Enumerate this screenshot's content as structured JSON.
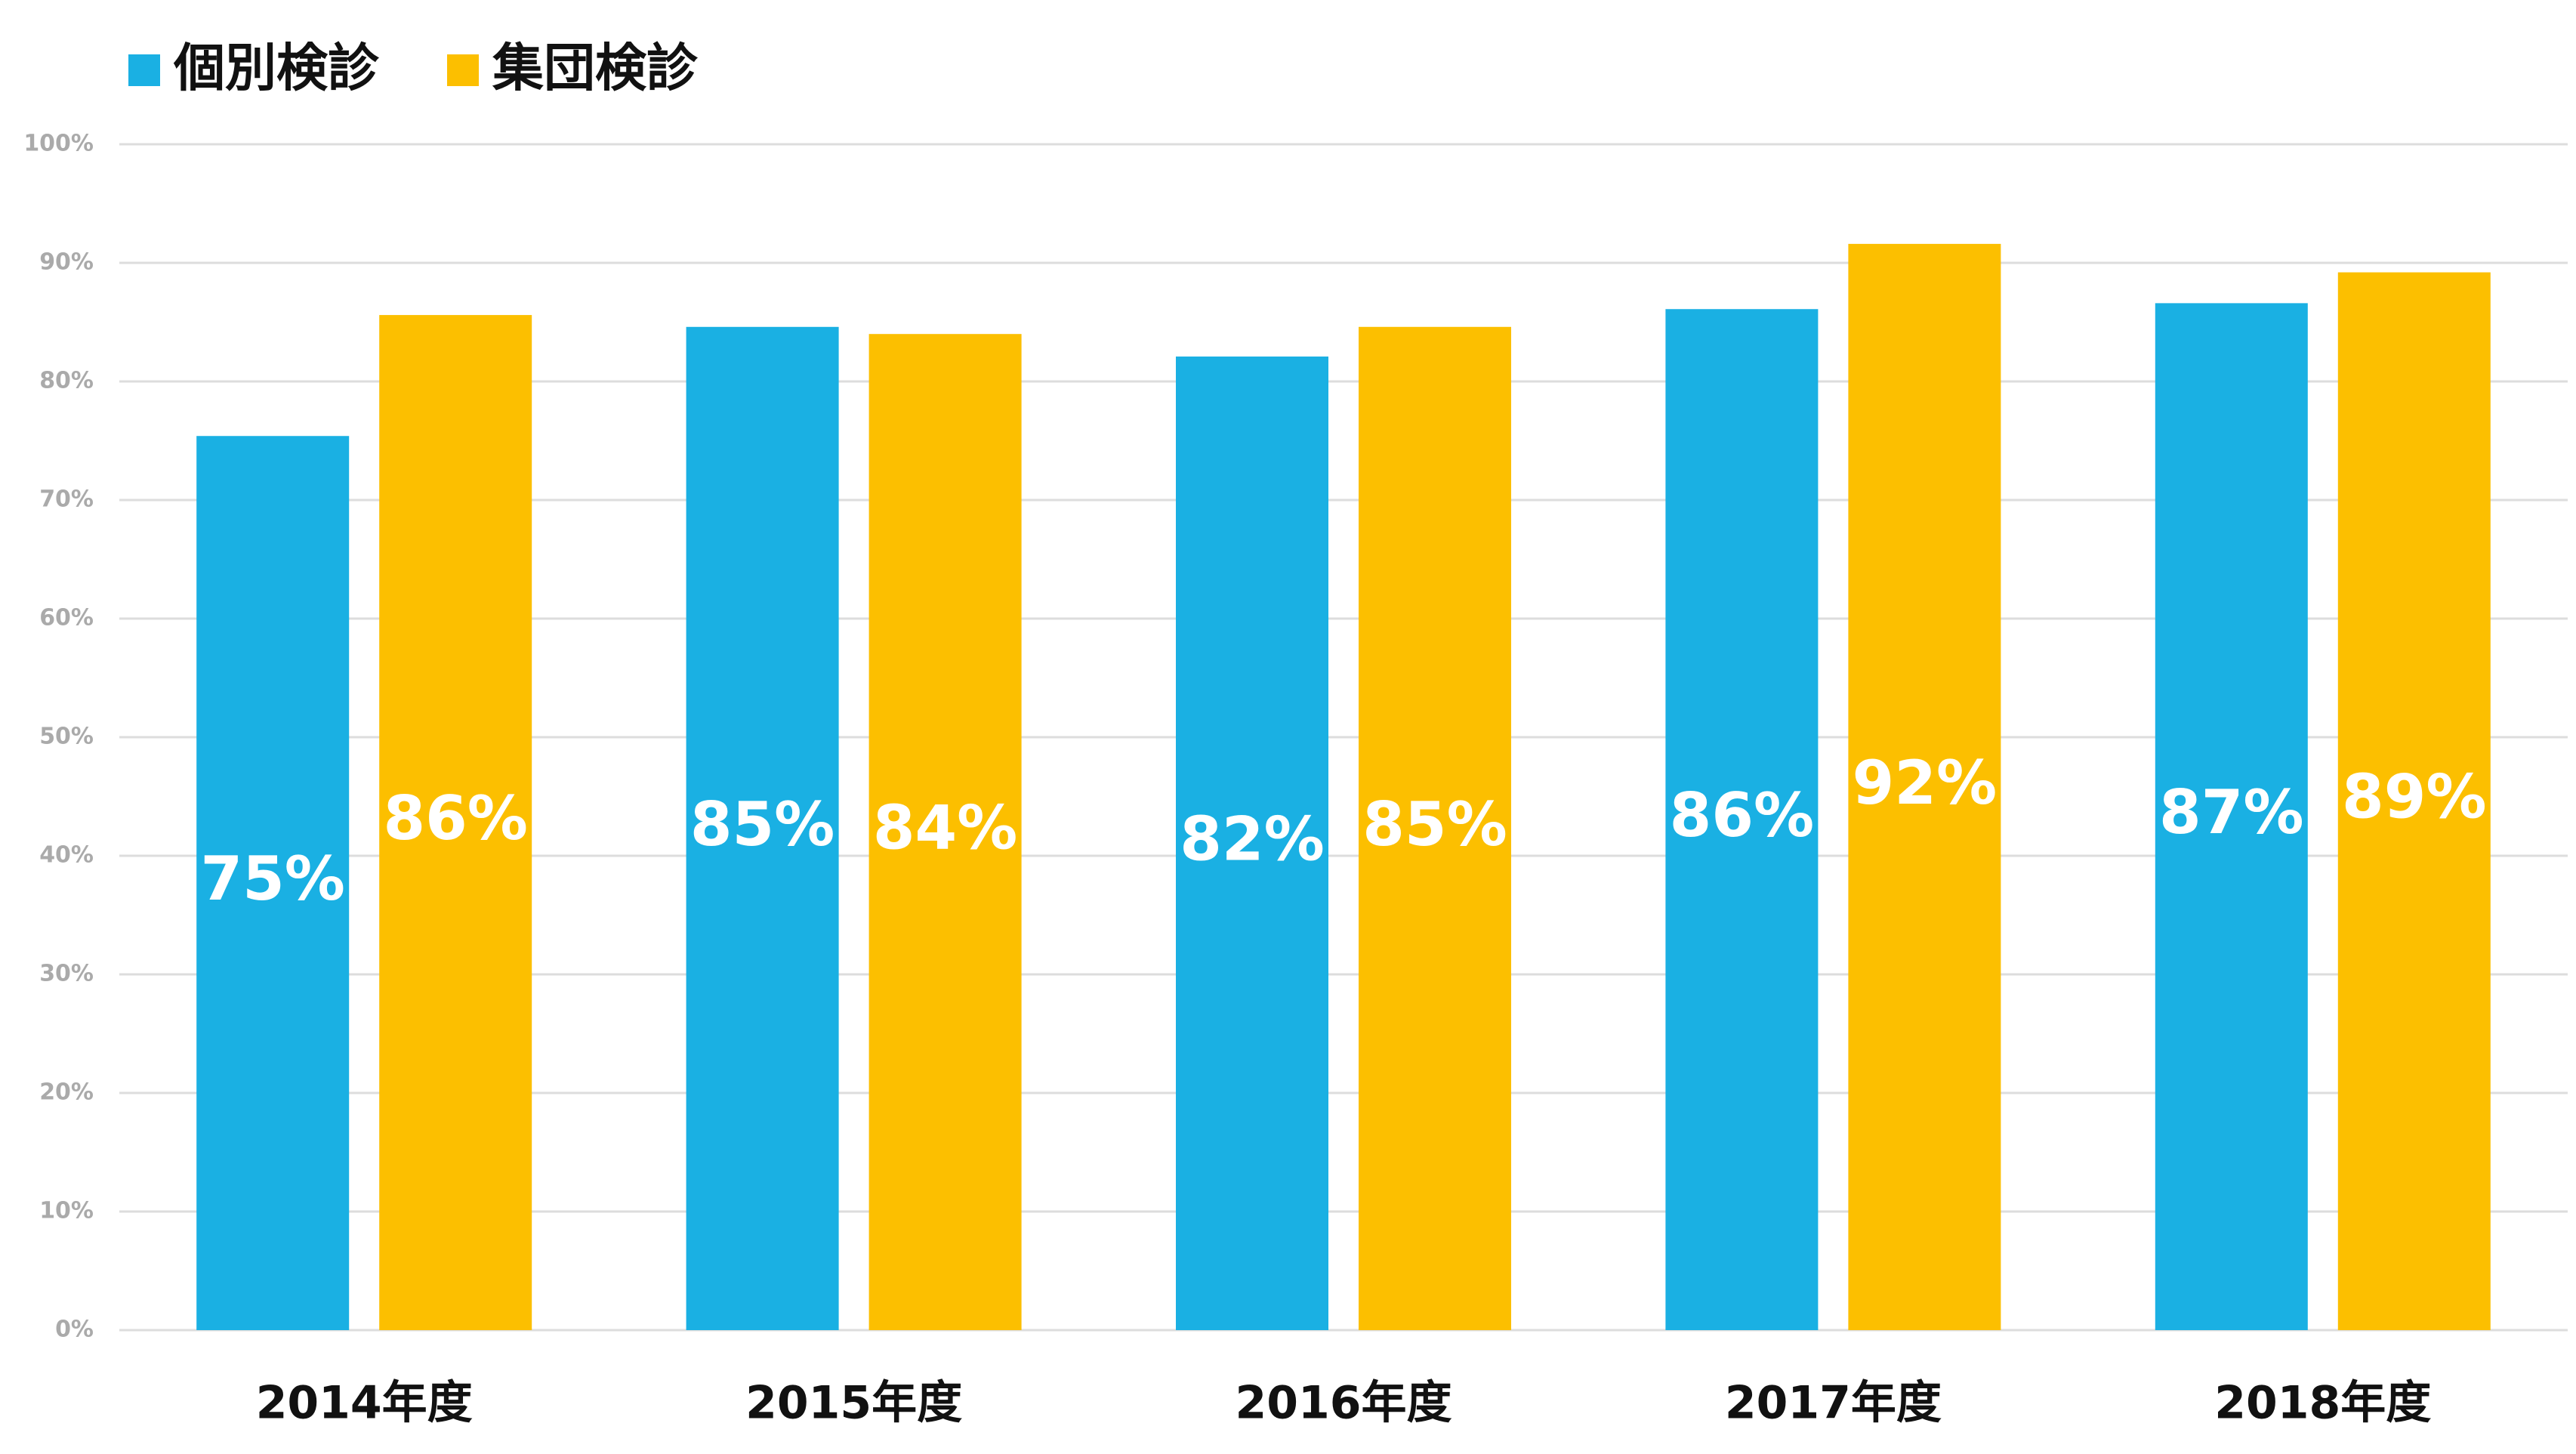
{
  "chart_data": {
    "type": "bar",
    "categories": [
      "2014年度",
      "2015年度",
      "2016年度",
      "2017年度",
      "2018年度"
    ],
    "series": [
      {
        "name": "個別検診",
        "color": "#1ab0e3",
        "values": [
          75.4,
          84.6,
          82.1,
          86.1,
          86.6
        ],
        "value_labels": [
          "75%",
          "85%",
          "82%",
          "86%",
          "87%"
        ]
      },
      {
        "name": "集団検診",
        "color": "#fcbf00",
        "values": [
          85.6,
          84.0,
          84.6,
          91.6,
          89.2
        ],
        "value_labels": [
          "86%",
          "84%",
          "85%",
          "92%",
          "89%"
        ]
      }
    ],
    "ylim": [
      0,
      100
    ],
    "yticks": [
      {
        "value": 0,
        "label": "0%"
      },
      {
        "value": 10,
        "label": "10%"
      },
      {
        "value": 20,
        "label": "20%"
      },
      {
        "value": 30,
        "label": "30%"
      },
      {
        "value": 40,
        "label": "40%"
      },
      {
        "value": 50,
        "label": "50%"
      },
      {
        "value": 60,
        "label": "60%"
      },
      {
        "value": 70,
        "label": "70%"
      },
      {
        "value": 80,
        "label": "80%"
      },
      {
        "value": 90,
        "label": "90%"
      },
      {
        "value": 100,
        "label": "100%"
      }
    ],
    "grid": true,
    "legend": "top-left"
  }
}
